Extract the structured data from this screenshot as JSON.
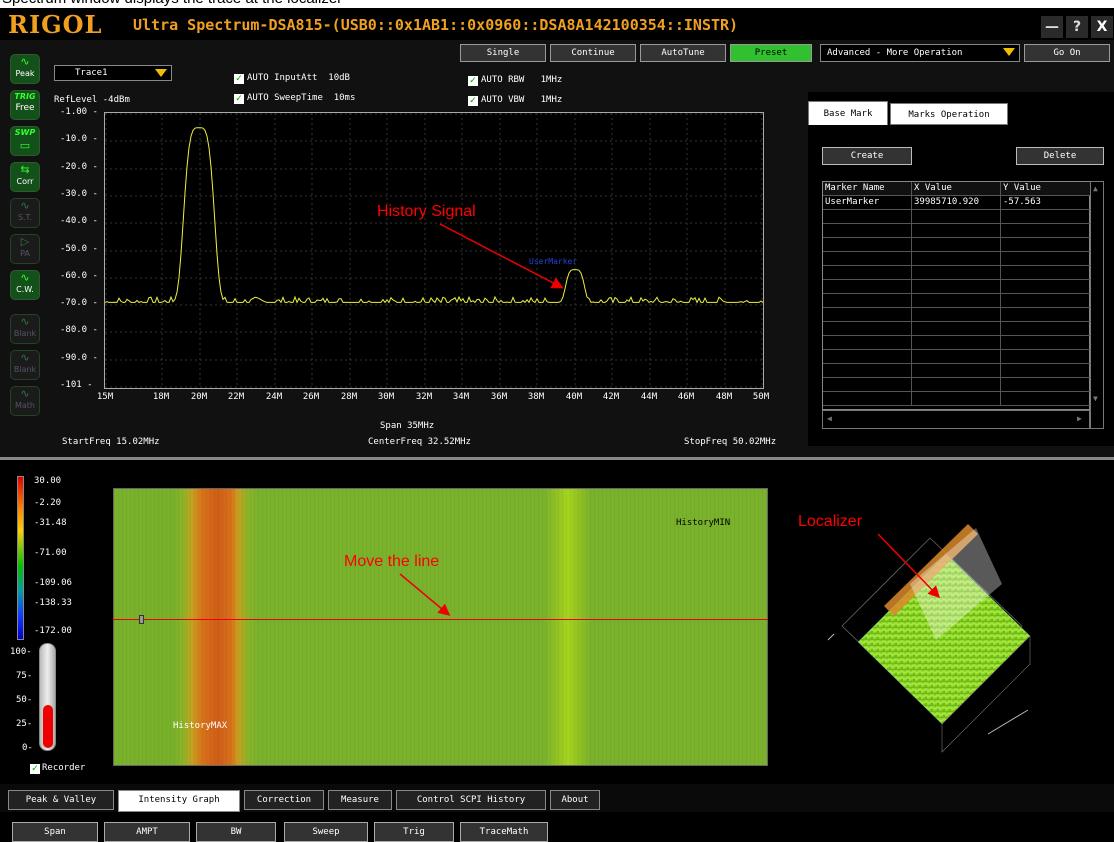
{
  "caption": "Spectrum window displays the trace at the localizer",
  "window": {
    "logo": "RIGOL",
    "title": "Ultra Spectrum-DSA815-(USB0::0x1AB1::0x0960::DSA8A142100354::INSTR)",
    "minimize": "—",
    "help": "?",
    "close": "X"
  },
  "sidebar": [
    {
      "top": "",
      "glyph": "∿",
      "label": "Peak"
    },
    {
      "top": "TRIG",
      "glyph": "",
      "label": "Free"
    },
    {
      "top": "SWP",
      "glyph": "▭",
      "label": ""
    },
    {
      "top": "",
      "glyph": "⇆",
      "label": "Corr"
    },
    {
      "top": "",
      "glyph": "∿",
      "label": "S.T."
    },
    {
      "top": "",
      "glyph": "▷",
      "label": "PA"
    },
    {
      "top": "",
      "glyph": "∿",
      "label": "C.W."
    },
    {
      "top": "",
      "glyph": "∿",
      "label": "Blank"
    },
    {
      "top": "",
      "glyph": "∿",
      "label": "Blank"
    },
    {
      "top": "",
      "glyph": "∿",
      "label": "Math"
    }
  ],
  "trace_select": "Trace1",
  "ref_level": "RefLevel -4dBm",
  "auto_settings": {
    "input_att_label": "AUTO InputAtt",
    "input_att_value": "10dB",
    "sweep_time_label": "AUTO SweepTime",
    "sweep_time_value": "10ms",
    "rbw_label": "AUTO RBW",
    "rbw_value": "1MHz",
    "vbw_label": "AUTO VBW",
    "vbw_value": "1MHz"
  },
  "toolbar": {
    "single": "Single",
    "continue": "Continue",
    "autotune": "AutoTune",
    "preset": "Preset",
    "advanced": "Advanced - More Operation",
    "go_on": "Go On"
  },
  "chart_data": {
    "type": "line",
    "y_ticks": [
      "-1.00",
      "-10.0",
      "-20.0",
      "-30.0",
      "-40.0",
      "-50.0",
      "-60.0",
      "-70.0",
      "-80.0",
      "-90.0",
      "-101"
    ],
    "x_ticks": [
      "15M",
      "18M",
      "20M",
      "22M",
      "24M",
      "26M",
      "28M",
      "30M",
      "32M",
      "34M",
      "36M",
      "38M",
      "40M",
      "42M",
      "44M",
      "46M",
      "48M",
      "50M"
    ],
    "ylim": [
      -101,
      -1
    ],
    "xlim": [
      15,
      50
    ],
    "noise_floor_dbm": -70,
    "peaks": [
      {
        "freq_mhz": 20,
        "level_dbm": -6
      },
      {
        "freq_mhz": 40,
        "level_dbm": -58
      }
    ],
    "color": "#f0f040"
  },
  "freq": {
    "start": "StartFreq 15.02MHz",
    "span": "Span 35MHz",
    "center": "CenterFreq 32.52MHz",
    "stop": "StopFreq 50.02MHz"
  },
  "marker_label": "UserMarker",
  "marker_panel": {
    "tabs": [
      "Base Mark",
      "Marks Operation"
    ],
    "create": "Create",
    "delete": "Delete",
    "headers": [
      "Marker Name",
      "X Value",
      "Y Value"
    ],
    "rows": [
      [
        "UserMarker",
        "39985710.920",
        "-57.563"
      ]
    ]
  },
  "annotations": {
    "history_signal": "History Signal",
    "move_line": "Move the line",
    "localizer": "Localizer"
  },
  "colorbar_labels": [
    "30.00",
    "-2.20",
    "-31.48",
    "-71.00",
    "-109.06",
    "-138.33",
    "-172.00"
  ],
  "thermo_labels": [
    "100",
    "75",
    "50",
    "25",
    "0"
  ],
  "recorder_level": 0.42,
  "recorder": "Recorder",
  "history_min": "HistoryMIN",
  "history_max": "HistoryMAX",
  "bottom_tabs": [
    "Peak & Valley",
    "Intensity Graph",
    "Correction",
    "Measure",
    "Control SCPI History",
    "About"
  ],
  "function_buttons": [
    "Span",
    "AMPT",
    "BW",
    "Sweep",
    "Trig",
    "TraceMath"
  ]
}
